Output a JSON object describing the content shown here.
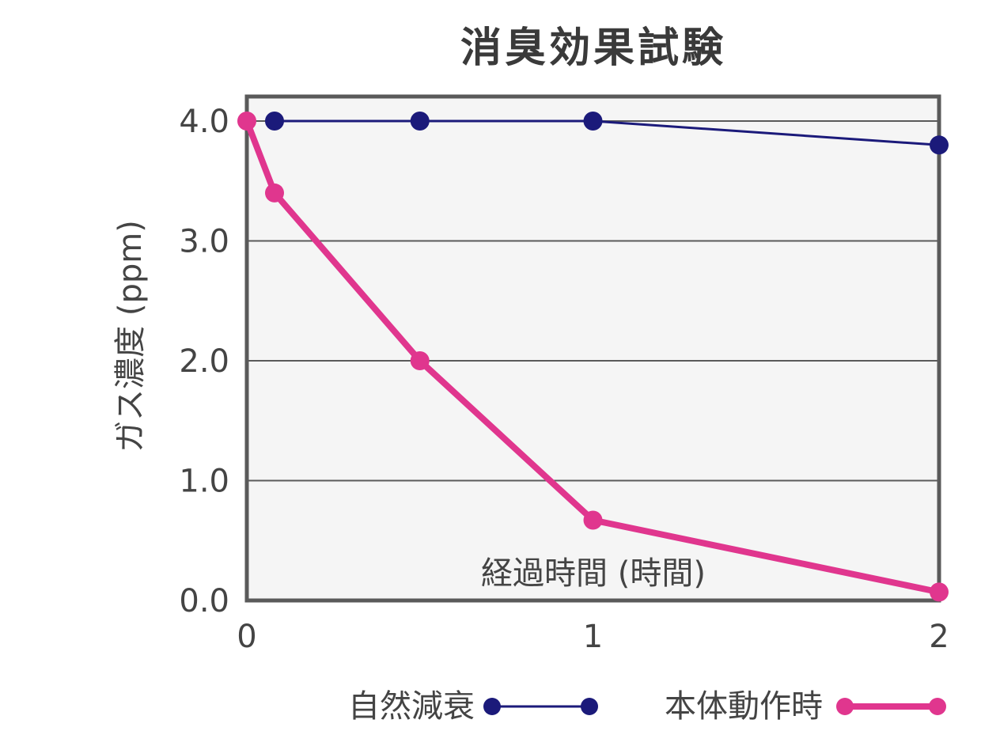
{
  "chart_data": {
    "type": "line",
    "title": "消臭効果試験",
    "xlabel": "経過時間 (時間)",
    "ylabel": "ガス濃度 (ppm)",
    "xlim": [
      0,
      2
    ],
    "ylim": [
      0,
      4
    ],
    "x_ticks": [
      "0",
      "1",
      "2"
    ],
    "y_ticks": [
      "0.0",
      "1.0",
      "2.0",
      "3.0",
      "4.0"
    ],
    "grid": true,
    "legend_position": "bottom",
    "series": [
      {
        "name": "自然減衰",
        "color": "#1b1a7a",
        "x": [
          0.08,
          0.5,
          1.0,
          2.0
        ],
        "y": [
          4.0,
          4.0,
          4.0,
          3.8
        ]
      },
      {
        "name": "本体動作時",
        "color": "#e0368e",
        "x": [
          0,
          0.08,
          0.5,
          1.0,
          2.0
        ],
        "y": [
          4.0,
          3.4,
          2.0,
          0.67,
          0.07
        ]
      }
    ]
  }
}
